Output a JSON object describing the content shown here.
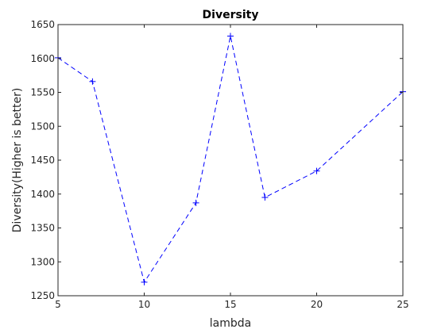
{
  "chart_data": {
    "type": "line",
    "title": "Diversity",
    "xlabel": "lambda",
    "ylabel": "Diversity(Higher is better)",
    "xlim": [
      5,
      25
    ],
    "ylim": [
      1250,
      1650
    ],
    "xticks": [
      5,
      10,
      15,
      20,
      25
    ],
    "yticks": [
      1250,
      1300,
      1350,
      1400,
      1450,
      1500,
      1550,
      1600,
      1650
    ],
    "grid": false,
    "legend": "none",
    "series": [
      {
        "color": "#0000ff",
        "line_style": "dashed",
        "marker": "plus",
        "x": [
          5,
          7,
          10,
          13,
          15,
          17,
          20,
          25
        ],
        "y": [
          1601,
          1566,
          1270,
          1387,
          1633,
          1395,
          1434,
          1551
        ]
      }
    ]
  }
}
